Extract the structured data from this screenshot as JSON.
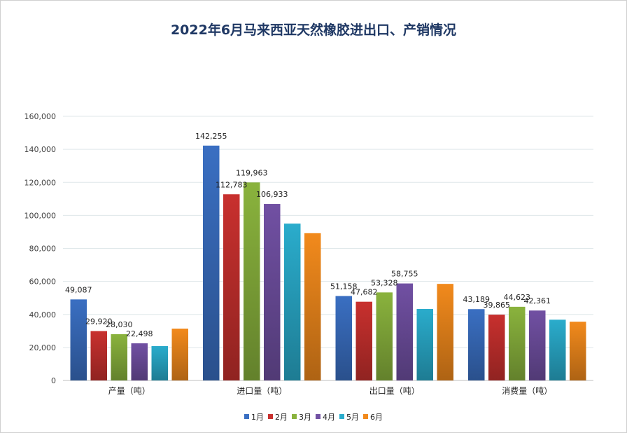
{
  "chart_data": {
    "type": "bar",
    "title": "2022年6月马来西亚天然橡胶进出口、产销情况",
    "categories": [
      "产量（吨）",
      "进口量（吨）",
      "出口量（吨）",
      "消费量（吨）"
    ],
    "ylim": [
      0,
      160000
    ],
    "yticks": [
      0,
      20000,
      40000,
      60000,
      80000,
      100000,
      120000,
      140000,
      160000
    ],
    "ytick_labels": [
      "0",
      "20,000",
      "40,000",
      "60,000",
      "80,000",
      "100,000",
      "120,000",
      "140,000",
      "160,000"
    ],
    "grid": true,
    "legend": "bottom",
    "series": [
      {
        "name": "1月",
        "color": "#3a6fc2",
        "values": [
          49087,
          142255,
          51158,
          43189
        ],
        "labels": [
          "49,087",
          "142,255",
          "51,158",
          "43,189"
        ]
      },
      {
        "name": "2月",
        "color": "#c8302e",
        "values": [
          29920,
          112783,
          47682,
          39865
        ],
        "labels": [
          "29,920",
          "112,783",
          "47,682",
          "39,865"
        ]
      },
      {
        "name": "3月",
        "color": "#8ab33d",
        "values": [
          28030,
          119963,
          53328,
          44623
        ],
        "labels": [
          "28,030",
          "119,963",
          "53,328",
          "44,623"
        ]
      },
      {
        "name": "4月",
        "color": "#7150a3",
        "values": [
          22498,
          106933,
          58755,
          42361
        ],
        "labels": [
          "22,498",
          "106,933",
          "58,755",
          "42,361"
        ]
      },
      {
        "name": "5月",
        "color": "#2aaccc",
        "values": [
          20800,
          95000,
          43300,
          36800
        ],
        "labels": [
          "",
          "",
          "",
          ""
        ]
      },
      {
        "name": "6月",
        "color": "#f28a1c",
        "values": [
          31400,
          89200,
          58500,
          35600
        ],
        "labels": [
          "",
          "",
          "",
          ""
        ]
      }
    ]
  }
}
